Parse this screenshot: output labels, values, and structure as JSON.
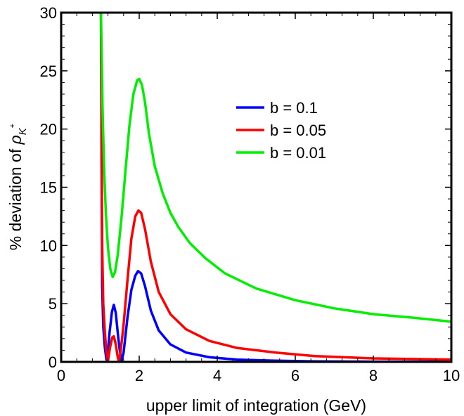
{
  "chart_data": {
    "type": "line",
    "title": "",
    "xlabel": "upper limit of integration (GeV)",
    "ylabel": {
      "prefix": "% deviation of ",
      "symbol": "ρ",
      "subscript": "K",
      "superscript": "+"
    },
    "xlim": [
      0,
      10
    ],
    "ylim": [
      0,
      30
    ],
    "x_ticks": [
      0,
      2,
      4,
      6,
      8,
      10
    ],
    "y_ticks": [
      0,
      5,
      10,
      15,
      20,
      25,
      30
    ],
    "grid": false,
    "legend_position": "upper-right-center",
    "series": [
      {
        "name": "b = 0.1",
        "color": "#0000ff",
        "points": [
          [
            1.02,
            30
          ],
          [
            1.05,
            6.5
          ],
          [
            1.08,
            3.0
          ],
          [
            1.12,
            1.2
          ],
          [
            1.16,
            0.2
          ],
          [
            1.19,
            0.5
          ],
          [
            1.24,
            2.5
          ],
          [
            1.3,
            4.3
          ],
          [
            1.35,
            4.9
          ],
          [
            1.4,
            4.2
          ],
          [
            1.45,
            2.5
          ],
          [
            1.5,
            1.0
          ],
          [
            1.55,
            0.1
          ],
          [
            1.6,
            0.8
          ],
          [
            1.7,
            3.8
          ],
          [
            1.8,
            6.2
          ],
          [
            1.9,
            7.4
          ],
          [
            1.97,
            7.8
          ],
          [
            2.05,
            7.6
          ],
          [
            2.15,
            6.5
          ],
          [
            2.3,
            4.4
          ],
          [
            2.5,
            2.7
          ],
          [
            2.8,
            1.5
          ],
          [
            3.2,
            0.8
          ],
          [
            3.8,
            0.4
          ],
          [
            4.5,
            0.2
          ],
          [
            5.5,
            0.1
          ],
          [
            6.5,
            0.05
          ],
          [
            8,
            0.02
          ],
          [
            10,
            0.01
          ]
        ]
      },
      {
        "name": "b = 0.05",
        "color": "#ff0000",
        "points": [
          [
            1.02,
            30
          ],
          [
            1.05,
            10
          ],
          [
            1.08,
            5.0
          ],
          [
            1.12,
            2.5
          ],
          [
            1.16,
            0.8
          ],
          [
            1.2,
            0.1
          ],
          [
            1.25,
            1.2
          ],
          [
            1.31,
            2.1
          ],
          [
            1.35,
            2.2
          ],
          [
            1.4,
            1.5
          ],
          [
            1.45,
            0.4
          ],
          [
            1.48,
            0.05
          ],
          [
            1.52,
            0.8
          ],
          [
            1.6,
            3.2
          ],
          [
            1.7,
            7.0
          ],
          [
            1.8,
            10.6
          ],
          [
            1.9,
            12.5
          ],
          [
            1.98,
            13.0
          ],
          [
            2.05,
            12.8
          ],
          [
            2.15,
            11.4
          ],
          [
            2.3,
            8.6
          ],
          [
            2.5,
            6.0
          ],
          [
            2.8,
            4.1
          ],
          [
            3.2,
            2.8
          ],
          [
            3.8,
            1.8
          ],
          [
            4.5,
            1.2
          ],
          [
            5.5,
            0.8
          ],
          [
            6.5,
            0.5
          ],
          [
            8,
            0.3
          ],
          [
            10,
            0.2
          ]
        ]
      },
      {
        "name": "b = 0.01",
        "color": "#00ee00",
        "points": [
          [
            1.02,
            30
          ],
          [
            1.06,
            22
          ],
          [
            1.1,
            16.5
          ],
          [
            1.15,
            12.5
          ],
          [
            1.2,
            9.8
          ],
          [
            1.26,
            8.0
          ],
          [
            1.32,
            7.3
          ],
          [
            1.38,
            7.7
          ],
          [
            1.45,
            9.2
          ],
          [
            1.55,
            12.5
          ],
          [
            1.65,
            16.5
          ],
          [
            1.75,
            20.3
          ],
          [
            1.85,
            23.0
          ],
          [
            1.95,
            24.2
          ],
          [
            2.0,
            24.3
          ],
          [
            2.07,
            23.8
          ],
          [
            2.15,
            22.3
          ],
          [
            2.25,
            19.6
          ],
          [
            2.4,
            16.8
          ],
          [
            2.6,
            14.5
          ],
          [
            2.8,
            12.8
          ],
          [
            3.0,
            11.6
          ],
          [
            3.3,
            10.2
          ],
          [
            3.7,
            8.9
          ],
          [
            4.2,
            7.6
          ],
          [
            5.0,
            6.3
          ],
          [
            6.0,
            5.3
          ],
          [
            7.0,
            4.6
          ],
          [
            8.0,
            4.1
          ],
          [
            9.0,
            3.8
          ],
          [
            10.0,
            3.45
          ]
        ]
      }
    ]
  }
}
